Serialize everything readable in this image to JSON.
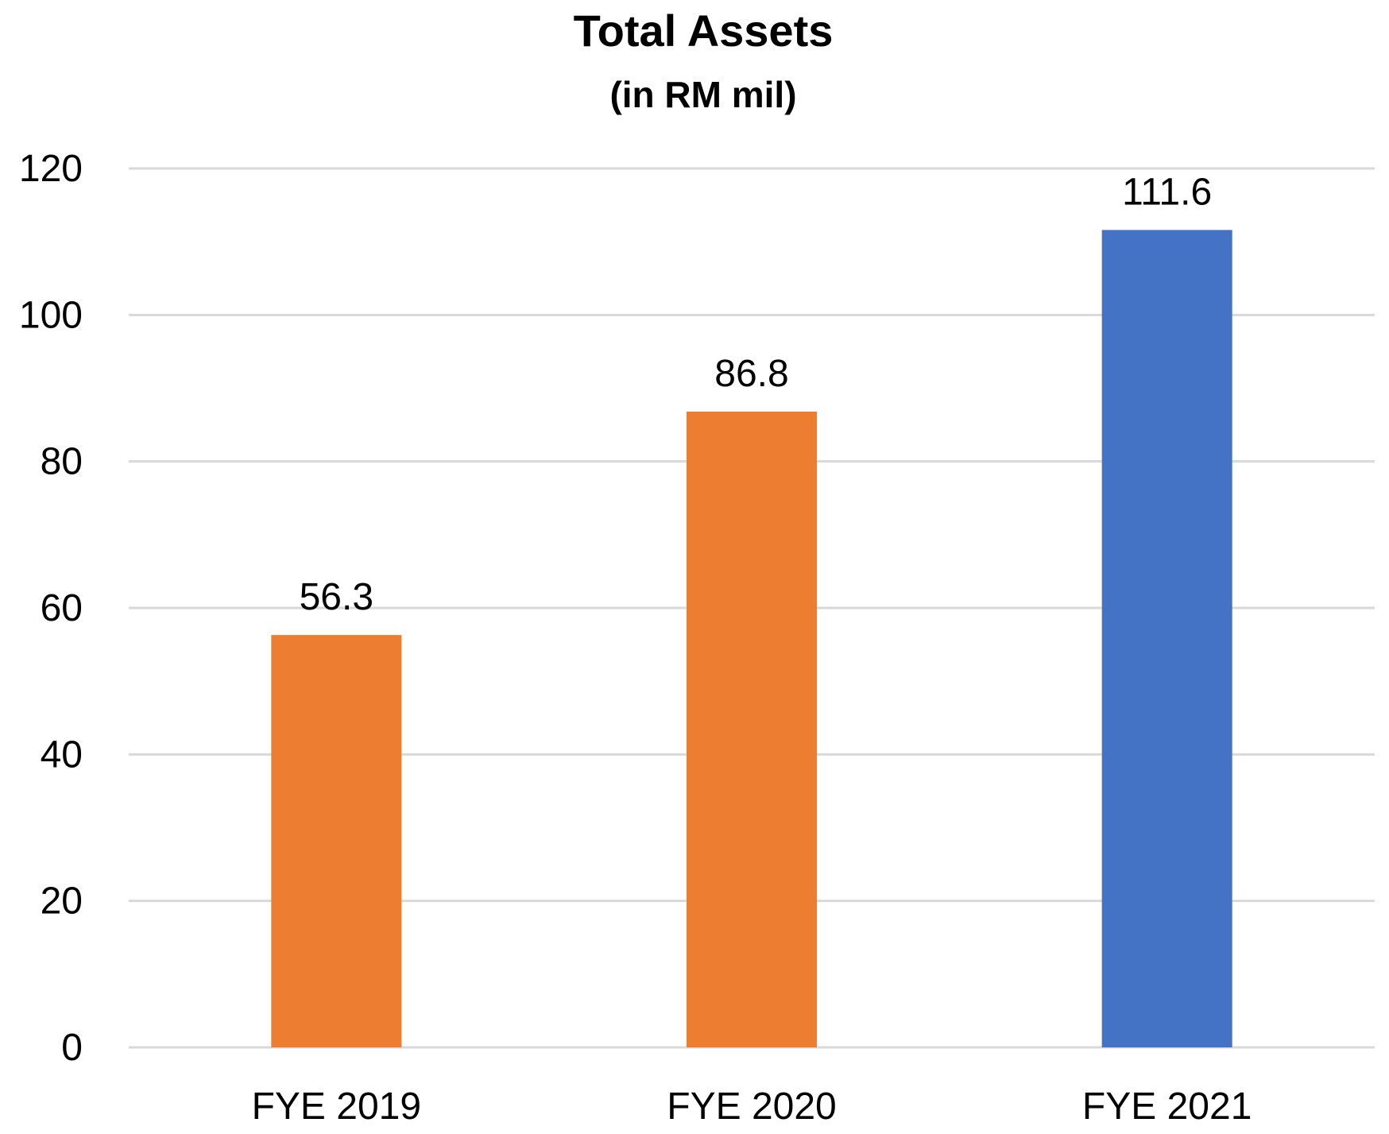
{
  "chart_data": {
    "type": "bar",
    "title": "Total Assets",
    "subtitle": "(in RM mil)",
    "categories": [
      "FYE 2019",
      "FYE 2020",
      "FYE 2021"
    ],
    "values": [
      56.3,
      86.8,
      111.6
    ],
    "data_labels": [
      "56.3",
      "86.8",
      "111.6"
    ],
    "bar_colors": [
      "#ed7d31",
      "#ed7d31",
      "#4472c4"
    ],
    "ylim": [
      0,
      120
    ],
    "yticks": [
      0,
      20,
      40,
      60,
      80,
      100,
      120
    ],
    "xlabel": "",
    "ylabel": "",
    "grid": true,
    "legend": "none"
  }
}
